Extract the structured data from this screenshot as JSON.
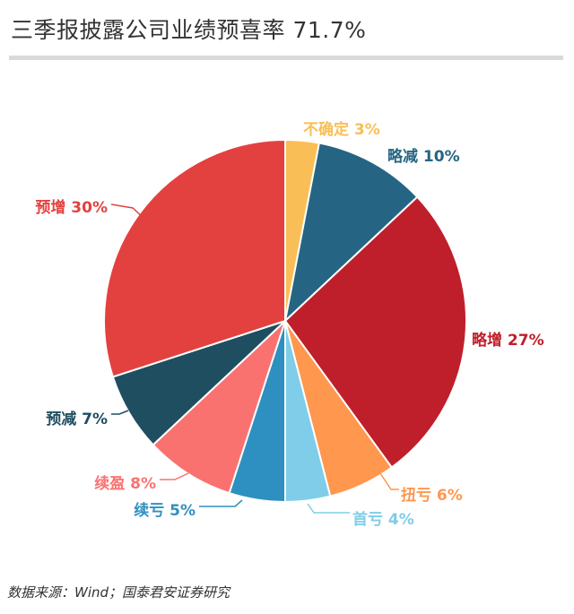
{
  "header": {
    "title": "三季报披露公司业绩预喜率 71.7%"
  },
  "footer": {
    "source": "数据来源：Wind；国泰君安证券研究"
  },
  "chart_data": {
    "type": "pie",
    "title": "三季报披露公司业绩预喜率 71.7%",
    "start_angle_deg": 0,
    "direction": "clockwise",
    "slices": [
      {
        "name": "不确定",
        "value": 3,
        "label": "不确定 3%",
        "color": "#F9BE55"
      },
      {
        "name": "略减",
        "value": 10,
        "label": "略减 10%",
        "color": "#256583"
      },
      {
        "name": "略增",
        "value": 27,
        "label": "略增 27%",
        "color": "#BF1F2A"
      },
      {
        "name": "扭亏",
        "value": 6,
        "label": "扭亏 6%",
        "color": "#FF974F"
      },
      {
        "name": "首亏",
        "value": 4,
        "label": "首亏 4%",
        "color": "#7FCDE8"
      },
      {
        "name": "续亏",
        "value": 5,
        "label": "续亏 5%",
        "color": "#2E90C0"
      },
      {
        "name": "续盈",
        "value": 8,
        "label": "续盈 8%",
        "color": "#F97270"
      },
      {
        "name": "预减",
        "value": 7,
        "label": "预减 7%",
        "color": "#1E4E60"
      },
      {
        "name": "预增",
        "value": 30,
        "label": "预增 30%",
        "color": "#E2413F"
      }
    ]
  }
}
